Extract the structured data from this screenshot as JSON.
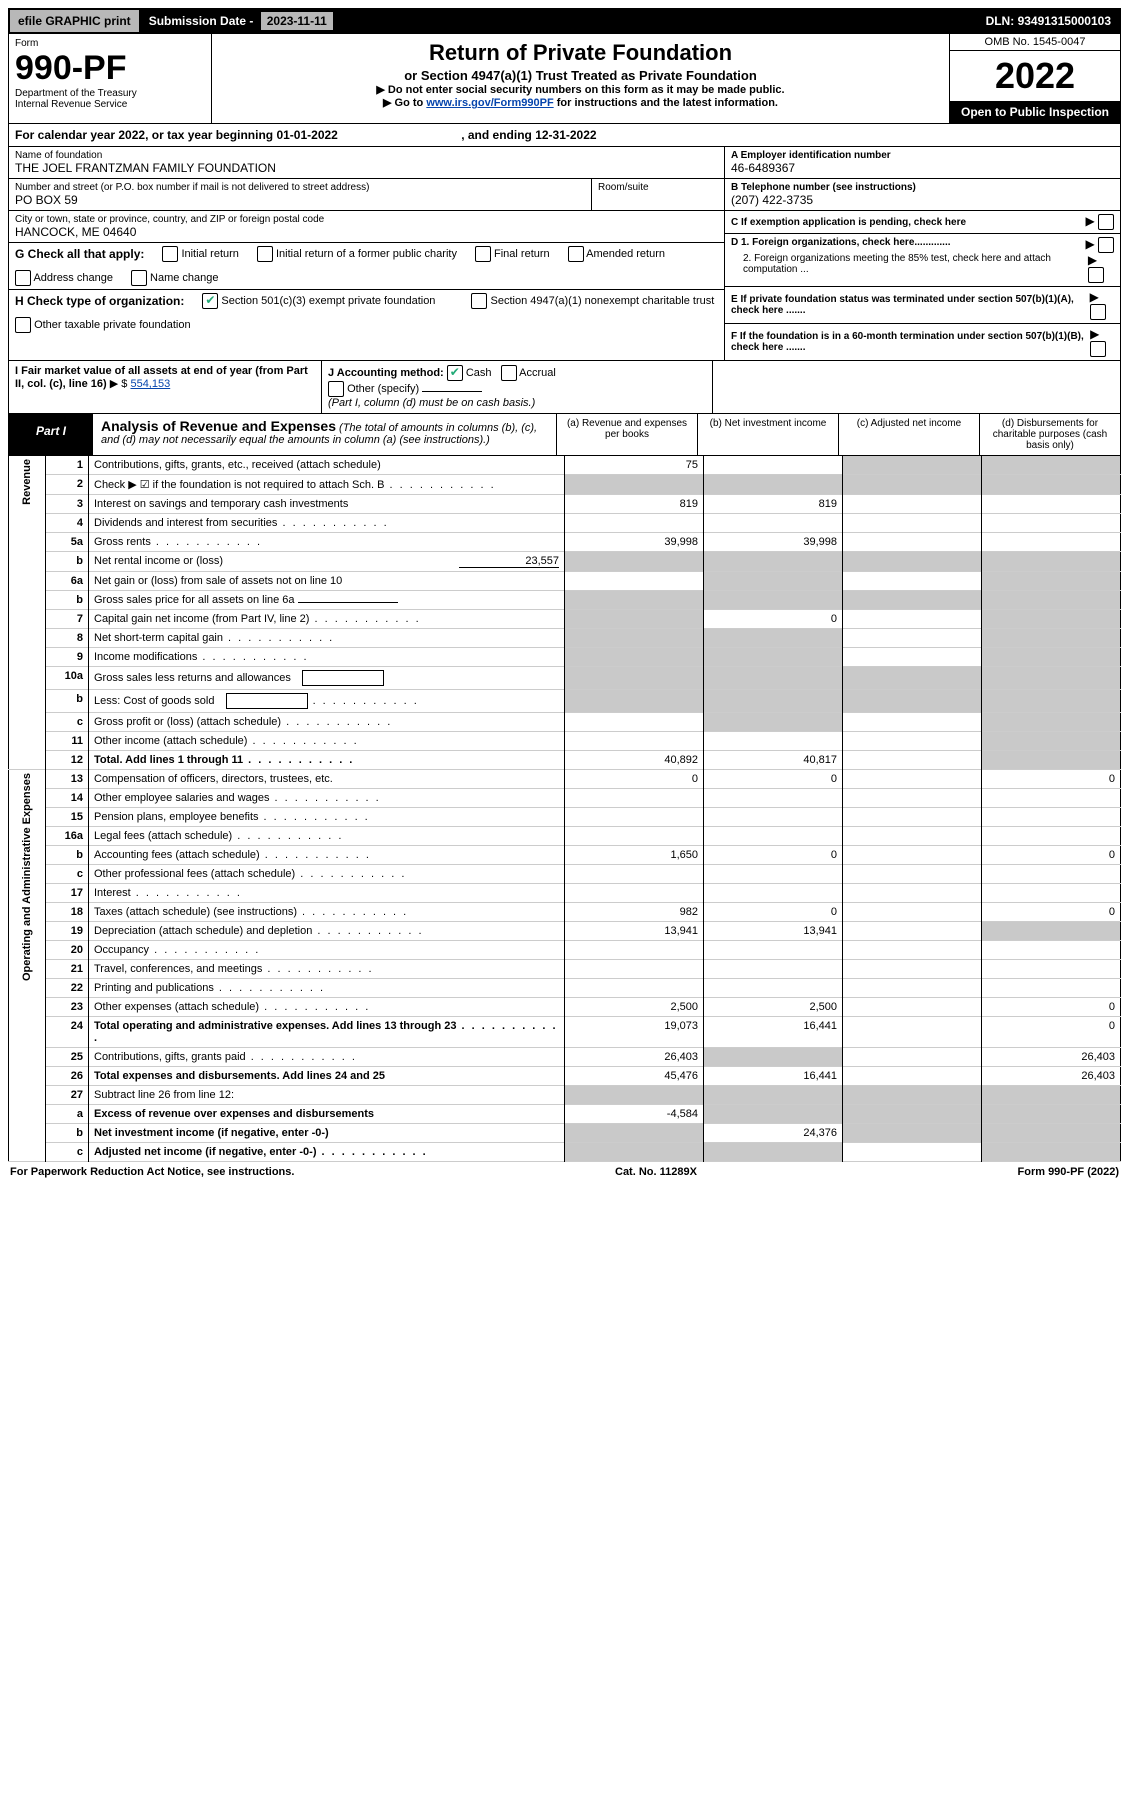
{
  "topbar": {
    "efile": "efile GRAPHIC print",
    "subdate_label": "Submission Date - ",
    "subdate": "2023-11-11",
    "dln_label": "DLN: ",
    "dln": "93491315000103"
  },
  "header": {
    "form_label": "Form",
    "form_num": "990-PF",
    "dept": "Department of the Treasury",
    "irs": "Internal Revenue Service",
    "title": "Return of Private Foundation",
    "subtitle": "or Section 4947(a)(1) Trust Treated as Private Foundation",
    "instr1": "▶ Do not enter social security numbers on this form as it may be made public.",
    "instr2_pre": "▶ Go to ",
    "instr2_link": "www.irs.gov/Form990PF",
    "instr2_post": " for instructions and the latest information.",
    "omb": "OMB No. 1545-0047",
    "year": "2022",
    "open": "Open to Public Inspection"
  },
  "calendar": {
    "text_a": "For calendar year 2022, or tax year beginning ",
    "begin": "01-01-2022",
    "text_b": ", and ending ",
    "end": "12-31-2022"
  },
  "info": {
    "name_label": "Name of foundation",
    "name": "THE JOEL FRANTZMAN FAMILY FOUNDATION",
    "addr_label": "Number and street (or P.O. box number if mail is not delivered to street address)",
    "addr": "PO BOX 59",
    "room_label": "Room/suite",
    "room": "",
    "city_label": "City or town, state or province, country, and ZIP or foreign postal code",
    "city": "HANCOCK, ME  04640",
    "a_label": "A Employer identification number",
    "a_val": "46-6489367",
    "b_label": "B Telephone number (see instructions)",
    "b_val": "(207) 422-3735",
    "c_label": "C If exemption application is pending, check here",
    "d1_label": "D 1. Foreign organizations, check here.............",
    "d2_label": "2. Foreign organizations meeting the 85% test, check here and attach computation ...",
    "e_label": "E  If private foundation status was terminated under section 507(b)(1)(A), check here .......",
    "f_label": "F  If the foundation is in a 60-month termination under section 507(b)(1)(B), check here ......."
  },
  "checks": {
    "g_label": "G Check all that apply:",
    "g_items": [
      "Initial return",
      "Initial return of a former public charity",
      "Final return",
      "Amended return",
      "Address change",
      "Name change"
    ],
    "h_label": "H Check type of organization:",
    "h_item1": "Section 501(c)(3) exempt private foundation",
    "h_item2": "Section 4947(a)(1) nonexempt charitable trust",
    "h_item3": "Other taxable private foundation",
    "i_label": "I Fair market value of all assets at end of year (from Part II, col. (c), line 16)",
    "i_val": "554,153",
    "j_label": "J Accounting method:",
    "j_cash": "Cash",
    "j_accrual": "Accrual",
    "j_other": "Other (specify)",
    "j_note": "(Part I, column (d) must be on cash basis.)"
  },
  "part1": {
    "label": "Part I",
    "title": "Analysis of Revenue and Expenses",
    "note": "(The total of amounts in columns (b), (c), and (d) may not necessarily equal the amounts in column (a) (see instructions).)",
    "col_a": "(a)  Revenue and expenses per books",
    "col_b": "(b)  Net investment income",
    "col_c": "(c)  Adjusted net income",
    "col_d": "(d)  Disbursements for charitable purposes (cash basis only)"
  },
  "side_labels": {
    "revenue": "Revenue",
    "expenses": "Operating and Administrative Expenses"
  },
  "rows": [
    {
      "n": "1",
      "desc": "Contributions, gifts, grants, etc., received (attach schedule)",
      "a": "75",
      "b": "",
      "c_grey": true,
      "d_grey": true
    },
    {
      "n": "2",
      "desc": "Check ▶ ☑ if the foundation is not required to attach Sch. B",
      "dots": true,
      "all_grey": true
    },
    {
      "n": "3",
      "desc": "Interest on savings and temporary cash investments",
      "a": "819",
      "b": "819"
    },
    {
      "n": "4",
      "desc": "Dividends and interest from securities",
      "dots": true
    },
    {
      "n": "5a",
      "desc": "Gross rents",
      "dots": true,
      "a": "39,998",
      "b": "39,998"
    },
    {
      "n": "b",
      "desc": "Net rental income or (loss)",
      "inline_val": "23,557",
      "all_grey": true
    },
    {
      "n": "6a",
      "desc": "Net gain or (loss) from sale of assets not on line 10",
      "b_grey": true,
      "d_grey": true
    },
    {
      "n": "b",
      "desc": "Gross sales price for all assets on line 6a",
      "inline_underline": true,
      "all_grey": true
    },
    {
      "n": "7",
      "desc": "Capital gain net income (from Part IV, line 2)",
      "dots": true,
      "a_grey": true,
      "b": "0",
      "d_grey": true
    },
    {
      "n": "8",
      "desc": "Net short-term capital gain",
      "dots": true,
      "a_grey": true,
      "b_grey": true,
      "d_grey": true
    },
    {
      "n": "9",
      "desc": "Income modifications",
      "dots": true,
      "a_grey": true,
      "b_grey": true,
      "d_grey": true
    },
    {
      "n": "10a",
      "desc": "Gross sales less returns and allowances",
      "inline_box": true,
      "all_grey": true
    },
    {
      "n": "b",
      "desc": "Less: Cost of goods sold",
      "dots": true,
      "inline_box": true,
      "all_grey": true
    },
    {
      "n": "c",
      "desc": "Gross profit or (loss) (attach schedule)",
      "dots": true,
      "b_grey": true,
      "d_grey": true
    },
    {
      "n": "11",
      "desc": "Other income (attach schedule)",
      "dots": true,
      "d_grey": true
    },
    {
      "n": "12",
      "desc": "Total. Add lines 1 through 11",
      "bold": true,
      "dots": true,
      "a": "40,892",
      "b": "40,817",
      "d_grey": true
    }
  ],
  "exp_rows": [
    {
      "n": "13",
      "desc": "Compensation of officers, directors, trustees, etc.",
      "a": "0",
      "b": "0",
      "d": "0"
    },
    {
      "n": "14",
      "desc": "Other employee salaries and wages",
      "dots": true
    },
    {
      "n": "15",
      "desc": "Pension plans, employee benefits",
      "dots": true
    },
    {
      "n": "16a",
      "desc": "Legal fees (attach schedule)",
      "dots": true
    },
    {
      "n": "b",
      "desc": "Accounting fees (attach schedule)",
      "dots": true,
      "a": "1,650",
      "b": "0",
      "d": "0"
    },
    {
      "n": "c",
      "desc": "Other professional fees (attach schedule)",
      "dots": true
    },
    {
      "n": "17",
      "desc": "Interest",
      "dots": true
    },
    {
      "n": "18",
      "desc": "Taxes (attach schedule) (see instructions)",
      "dots": true,
      "a": "982",
      "b": "0",
      "d": "0"
    },
    {
      "n": "19",
      "desc": "Depreciation (attach schedule) and depletion",
      "dots": true,
      "a": "13,941",
      "b": "13,941",
      "d_grey": true
    },
    {
      "n": "20",
      "desc": "Occupancy",
      "dots": true
    },
    {
      "n": "21",
      "desc": "Travel, conferences, and meetings",
      "dots": true
    },
    {
      "n": "22",
      "desc": "Printing and publications",
      "dots": true
    },
    {
      "n": "23",
      "desc": "Other expenses (attach schedule)",
      "dots": true,
      "a": "2,500",
      "b": "2,500",
      "d": "0"
    },
    {
      "n": "24",
      "desc": "Total operating and administrative expenses. Add lines 13 through 23",
      "bold": true,
      "dots": true,
      "a": "19,073",
      "b": "16,441",
      "d": "0"
    },
    {
      "n": "25",
      "desc": "Contributions, gifts, grants paid",
      "dots": true,
      "a": "26,403",
      "b_grey": true,
      "d": "26,403"
    },
    {
      "n": "26",
      "desc": "Total expenses and disbursements. Add lines 24 and 25",
      "bold": true,
      "a": "45,476",
      "b": "16,441",
      "d": "26,403"
    },
    {
      "n": "27",
      "desc": "Subtract line 26 from line 12:",
      "all_grey": true
    },
    {
      "n": "a",
      "desc": "Excess of revenue over expenses and disbursements",
      "bold": true,
      "a": "-4,584",
      "b_grey": true,
      "c_grey": true,
      "d_grey": true
    },
    {
      "n": "b",
      "desc": "Net investment income (if negative, enter -0-)",
      "bold": true,
      "a_grey": true,
      "b": "24,376",
      "c_grey": true,
      "d_grey": true
    },
    {
      "n": "c",
      "desc": "Adjusted net income (if negative, enter -0-)",
      "bold": true,
      "dots": true,
      "a_grey": true,
      "b_grey": true,
      "d_grey": true
    }
  ],
  "footer": {
    "left": "For Paperwork Reduction Act Notice, see instructions.",
    "center": "Cat. No. 11289X",
    "right": "Form 990-PF (2022)"
  }
}
